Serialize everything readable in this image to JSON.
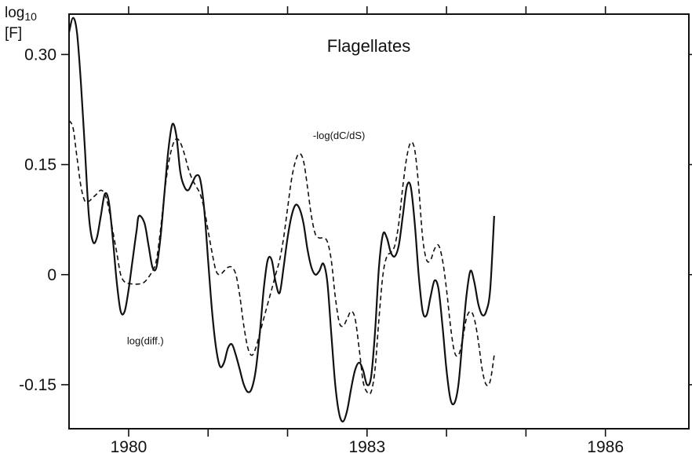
{
  "chart_data": {
    "type": "line",
    "title": "Flagellates",
    "ylabel_lines": [
      "log10",
      "[F]"
    ],
    "ylabel_main": "log",
    "ylabel_sub": "10",
    "ylabel_unit": "[F]",
    "xlabel": "",
    "xlim": [
      1979.25,
      1987.05
    ],
    "ylim": [
      -0.21,
      0.355
    ],
    "x_major_ticks": [
      1980,
      1983,
      1986
    ],
    "x_minor_ticks": [
      1981,
      1982,
      1984,
      1985
    ],
    "x_tick_labels": [
      "1980",
      "1983",
      "1986"
    ],
    "y_ticks": [
      0.3,
      0.15,
      0,
      -0.15
    ],
    "y_tick_labels": [
      "0.30",
      "0.15",
      "0",
      "-0.15"
    ],
    "grid": false,
    "series": [
      {
        "name": "log(diff.)",
        "style": "solid",
        "points": [
          [
            1979.25,
            0.33
          ],
          [
            1979.3,
            0.35
          ],
          [
            1979.35,
            0.33
          ],
          [
            1979.4,
            0.26
          ],
          [
            1979.45,
            0.17
          ],
          [
            1979.5,
            0.08
          ],
          [
            1979.55,
            0.045
          ],
          [
            1979.6,
            0.05
          ],
          [
            1979.65,
            0.08
          ],
          [
            1979.7,
            0.11
          ],
          [
            1979.75,
            0.1
          ],
          [
            1979.8,
            0.05
          ],
          [
            1979.85,
            -0.01
          ],
          [
            1979.9,
            -0.05
          ],
          [
            1979.95,
            -0.05
          ],
          [
            1980.0,
            -0.02
          ],
          [
            1980.05,
            0.02
          ],
          [
            1980.1,
            0.06
          ],
          [
            1980.13,
            0.08
          ],
          [
            1980.2,
            0.07
          ],
          [
            1980.25,
            0.04
          ],
          [
            1980.3,
            0.01
          ],
          [
            1980.35,
            0.01
          ],
          [
            1980.4,
            0.05
          ],
          [
            1980.45,
            0.11
          ],
          [
            1980.5,
            0.17
          ],
          [
            1980.55,
            0.205
          ],
          [
            1980.6,
            0.19
          ],
          [
            1980.65,
            0.14
          ],
          [
            1980.7,
            0.12
          ],
          [
            1980.75,
            0.115
          ],
          [
            1980.8,
            0.125
          ],
          [
            1980.85,
            0.135
          ],
          [
            1980.9,
            0.13
          ],
          [
            1980.95,
            0.09
          ],
          [
            1981.0,
            0.02
          ],
          [
            1981.05,
            -0.05
          ],
          [
            1981.1,
            -0.1
          ],
          [
            1981.15,
            -0.125
          ],
          [
            1981.2,
            -0.12
          ],
          [
            1981.25,
            -0.1
          ],
          [
            1981.3,
            -0.095
          ],
          [
            1981.35,
            -0.11
          ],
          [
            1981.4,
            -0.13
          ],
          [
            1981.45,
            -0.15
          ],
          [
            1981.5,
            -0.16
          ],
          [
            1981.55,
            -0.155
          ],
          [
            1981.6,
            -0.13
          ],
          [
            1981.65,
            -0.08
          ],
          [
            1981.7,
            -0.02
          ],
          [
            1981.75,
            0.02
          ],
          [
            1981.8,
            0.02
          ],
          [
            1981.85,
            -0.01
          ],
          [
            1981.9,
            -0.025
          ],
          [
            1981.95,
            0.01
          ],
          [
            1982.0,
            0.05
          ],
          [
            1982.05,
            0.08
          ],
          [
            1982.1,
            0.095
          ],
          [
            1982.15,
            0.09
          ],
          [
            1982.2,
            0.07
          ],
          [
            1982.25,
            0.035
          ],
          [
            1982.3,
            0.01
          ],
          [
            1982.35,
            0.0
          ],
          [
            1982.4,
            0.005
          ],
          [
            1982.45,
            0.015
          ],
          [
            1982.5,
            -0.01
          ],
          [
            1982.55,
            -0.08
          ],
          [
            1982.6,
            -0.15
          ],
          [
            1982.65,
            -0.19
          ],
          [
            1982.7,
            -0.2
          ],
          [
            1982.75,
            -0.185
          ],
          [
            1982.8,
            -0.155
          ],
          [
            1982.85,
            -0.13
          ],
          [
            1982.9,
            -0.12
          ],
          [
            1982.95,
            -0.13
          ],
          [
            1983.0,
            -0.15
          ],
          [
            1983.05,
            -0.14
          ],
          [
            1983.1,
            -0.08
          ],
          [
            1983.15,
            0.01
          ],
          [
            1983.2,
            0.055
          ],
          [
            1983.25,
            0.05
          ],
          [
            1983.3,
            0.03
          ],
          [
            1983.35,
            0.025
          ],
          [
            1983.4,
            0.04
          ],
          [
            1983.45,
            0.08
          ],
          [
            1983.5,
            0.12
          ],
          [
            1983.55,
            0.12
          ],
          [
            1983.6,
            0.07
          ],
          [
            1983.65,
            0.0
          ],
          [
            1983.7,
            -0.05
          ],
          [
            1983.75,
            -0.055
          ],
          [
            1983.8,
            -0.03
          ],
          [
            1983.85,
            -0.008
          ],
          [
            1983.9,
            -0.02
          ],
          [
            1983.95,
            -0.07
          ],
          [
            1984.0,
            -0.13
          ],
          [
            1984.05,
            -0.17
          ],
          [
            1984.1,
            -0.175
          ],
          [
            1984.15,
            -0.15
          ],
          [
            1984.2,
            -0.09
          ],
          [
            1984.25,
            -0.03
          ],
          [
            1984.3,
            0.005
          ],
          [
            1984.35,
            -0.01
          ],
          [
            1984.4,
            -0.04
          ],
          [
            1984.45,
            -0.055
          ],
          [
            1984.5,
            -0.05
          ],
          [
            1984.55,
            -0.02
          ],
          [
            1984.6,
            0.08
          ]
        ]
      },
      {
        "name": "-log(dC/dS)",
        "style": "dashed",
        "points": [
          [
            1979.25,
            0.21
          ],
          [
            1979.3,
            0.2
          ],
          [
            1979.35,
            0.16
          ],
          [
            1979.4,
            0.12
          ],
          [
            1979.45,
            0.1
          ],
          [
            1979.5,
            0.1
          ],
          [
            1979.55,
            0.105
          ],
          [
            1979.6,
            0.11
          ],
          [
            1979.65,
            0.115
          ],
          [
            1979.7,
            0.11
          ],
          [
            1979.75,
            0.09
          ],
          [
            1979.8,
            0.06
          ],
          [
            1979.85,
            0.03
          ],
          [
            1979.9,
            0.0
          ],
          [
            1979.95,
            -0.01
          ],
          [
            1980.0,
            -0.012
          ],
          [
            1980.1,
            -0.013
          ],
          [
            1980.2,
            -0.01
          ],
          [
            1980.3,
            0.005
          ],
          [
            1980.35,
            0.02
          ],
          [
            1980.4,
            0.06
          ],
          [
            1980.45,
            0.11
          ],
          [
            1980.5,
            0.15
          ],
          [
            1980.55,
            0.175
          ],
          [
            1980.6,
            0.185
          ],
          [
            1980.65,
            0.18
          ],
          [
            1980.7,
            0.165
          ],
          [
            1980.75,
            0.145
          ],
          [
            1980.8,
            0.13
          ],
          [
            1980.85,
            0.12
          ],
          [
            1980.9,
            0.11
          ],
          [
            1980.95,
            0.09
          ],
          [
            1981.0,
            0.06
          ],
          [
            1981.05,
            0.03
          ],
          [
            1981.1,
            0.005
          ],
          [
            1981.15,
            0.0
          ],
          [
            1981.2,
            0.005
          ],
          [
            1981.25,
            0.01
          ],
          [
            1981.3,
            0.01
          ],
          [
            1981.35,
            0.0
          ],
          [
            1981.4,
            -0.03
          ],
          [
            1981.45,
            -0.07
          ],
          [
            1981.5,
            -0.1
          ],
          [
            1981.55,
            -0.11
          ],
          [
            1981.6,
            -0.1
          ],
          [
            1981.65,
            -0.08
          ],
          [
            1981.7,
            -0.06
          ],
          [
            1981.75,
            -0.04
          ],
          [
            1981.8,
            -0.02
          ],
          [
            1981.85,
            0.0
          ],
          [
            1981.9,
            0.02
          ],
          [
            1981.95,
            0.05
          ],
          [
            1982.0,
            0.09
          ],
          [
            1982.05,
            0.13
          ],
          [
            1982.1,
            0.155
          ],
          [
            1982.15,
            0.165
          ],
          [
            1982.2,
            0.155
          ],
          [
            1982.25,
            0.12
          ],
          [
            1982.3,
            0.08
          ],
          [
            1982.35,
            0.055
          ],
          [
            1982.4,
            0.05
          ],
          [
            1982.45,
            0.05
          ],
          [
            1982.5,
            0.045
          ],
          [
            1982.55,
            0.02
          ],
          [
            1982.6,
            -0.03
          ],
          [
            1982.65,
            -0.065
          ],
          [
            1982.7,
            -0.07
          ],
          [
            1982.75,
            -0.06
          ],
          [
            1982.8,
            -0.05
          ],
          [
            1982.85,
            -0.06
          ],
          [
            1982.9,
            -0.1
          ],
          [
            1982.95,
            -0.145
          ],
          [
            1983.0,
            -0.16
          ],
          [
            1983.05,
            -0.16
          ],
          [
            1983.1,
            -0.13
          ],
          [
            1983.15,
            -0.06
          ],
          [
            1983.2,
            0.0
          ],
          [
            1983.25,
            0.025
          ],
          [
            1983.3,
            0.03
          ],
          [
            1983.35,
            0.04
          ],
          [
            1983.4,
            0.07
          ],
          [
            1983.45,
            0.12
          ],
          [
            1983.5,
            0.16
          ],
          [
            1983.55,
            0.18
          ],
          [
            1983.6,
            0.17
          ],
          [
            1983.65,
            0.12
          ],
          [
            1983.7,
            0.05
          ],
          [
            1983.75,
            0.02
          ],
          [
            1983.8,
            0.02
          ],
          [
            1983.85,
            0.035
          ],
          [
            1983.9,
            0.04
          ],
          [
            1983.95,
            0.02
          ],
          [
            1984.0,
            -0.02
          ],
          [
            1984.05,
            -0.07
          ],
          [
            1984.1,
            -0.105
          ],
          [
            1984.15,
            -0.11
          ],
          [
            1984.2,
            -0.09
          ],
          [
            1984.25,
            -0.06
          ],
          [
            1984.3,
            -0.05
          ],
          [
            1984.35,
            -0.06
          ],
          [
            1984.4,
            -0.09
          ],
          [
            1984.45,
            -0.13
          ],
          [
            1984.5,
            -0.15
          ],
          [
            1984.55,
            -0.145
          ],
          [
            1984.6,
            -0.11
          ]
        ]
      }
    ],
    "annotations": [
      {
        "text": "-log(dC/dS)",
        "x": 1982.32,
        "y": 0.185
      },
      {
        "text": "log(diff.)",
        "x": 1979.98,
        "y": -0.095
      }
    ]
  }
}
